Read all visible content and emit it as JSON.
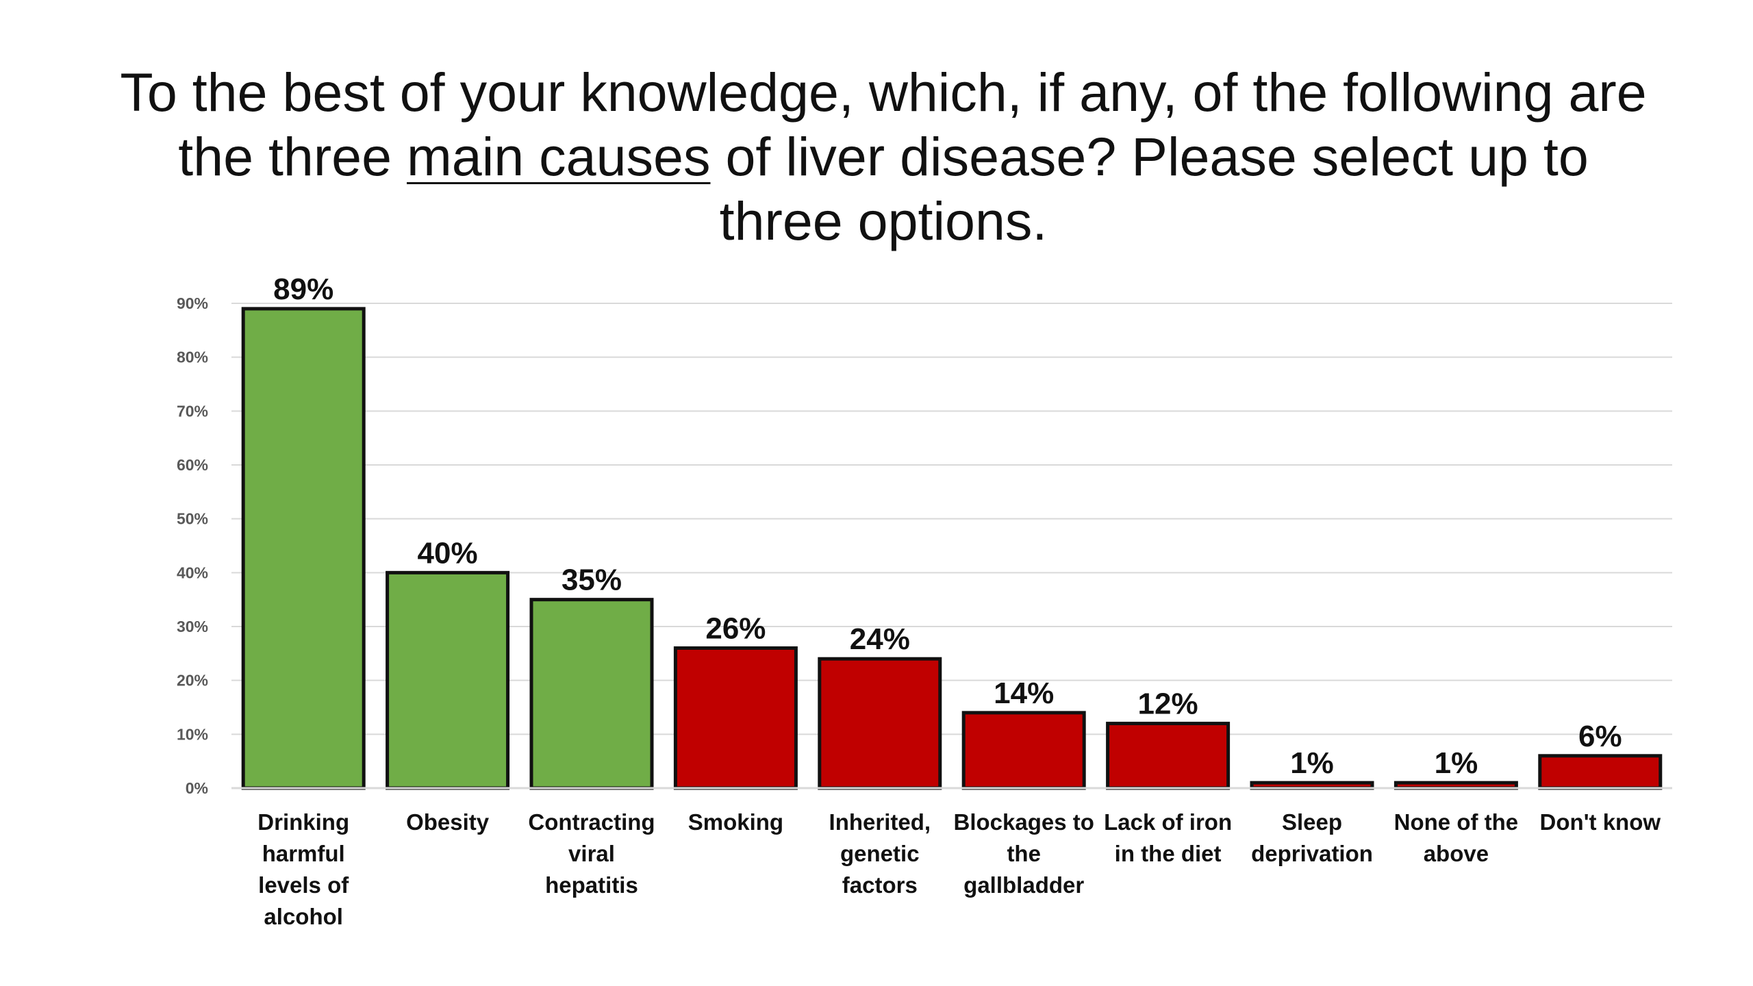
{
  "title": {
    "before": "To the best of your knowledge, which, if any, of the following are the three ",
    "underlined": "main causes",
    "after": " of liver disease? Please select up to three options."
  },
  "chart_data": {
    "type": "bar",
    "title": "To the best of your knowledge, which, if any, of the following are the three main causes of liver disease? Please select up to three options.",
    "xlabel": "",
    "ylabel": "",
    "ylim": [
      0,
      90
    ],
    "yticks": [
      "0%",
      "10%",
      "20%",
      "30%",
      "40%",
      "50%",
      "60%",
      "70%",
      "80%",
      "90%"
    ],
    "grid": true,
    "categories": [
      [
        "Drinking",
        "harmful",
        "levels of",
        "alcohol"
      ],
      [
        "Obesity"
      ],
      [
        "Contracting",
        "viral",
        "hepatitis"
      ],
      [
        "Smoking"
      ],
      [
        "Inherited,",
        "genetic",
        "factors"
      ],
      [
        "Blockages to",
        "the",
        "gallbladder"
      ],
      [
        "Lack of iron",
        "in the diet"
      ],
      [
        "Sleep",
        "deprivation"
      ],
      [
        "None of the",
        "above"
      ],
      [
        "Don't know"
      ]
    ],
    "values": [
      89,
      40,
      35,
      26,
      24,
      14,
      12,
      1,
      1,
      6
    ],
    "value_labels": [
      "89%",
      "40%",
      "35%",
      "26%",
      "24%",
      "14%",
      "12%",
      "1%",
      "1%",
      "6%"
    ],
    "bar_colors": [
      "#70ad47",
      "#70ad47",
      "#70ad47",
      "#c00000",
      "#c00000",
      "#c00000",
      "#c00000",
      "#c00000",
      "#c00000",
      "#c00000"
    ],
    "colors": {
      "correct": "#70ad47",
      "incorrect": "#c00000",
      "border": "#111111",
      "grid": "#d9d9d9"
    }
  }
}
